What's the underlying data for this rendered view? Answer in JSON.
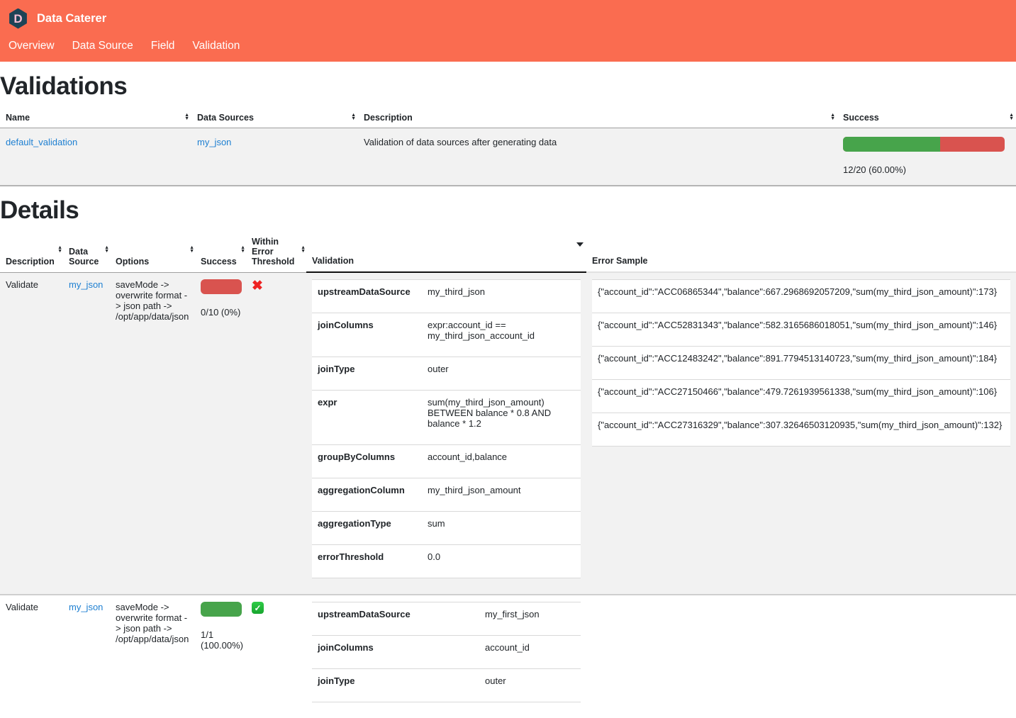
{
  "app": {
    "title": "Data Caterer",
    "logo_letter": "D"
  },
  "nav": {
    "items": [
      {
        "label": "Overview"
      },
      {
        "label": "Data Source"
      },
      {
        "label": "Field"
      },
      {
        "label": "Validation"
      }
    ]
  },
  "colors": {
    "topbar_orange": "#fa6c50",
    "logo_navy": "#1d4356",
    "logo_letter_pink": "#f7bdd3",
    "link_blue": "#1d7fd1",
    "success_green": "#47a44b",
    "fail_red": "#d9534f",
    "x_red": "#ee2222",
    "striped_row_gray": "#f2f2f2"
  },
  "validations": {
    "heading": "Validations",
    "columns": [
      "Name",
      "Data Sources",
      "Description",
      "Success"
    ],
    "rows": [
      {
        "name": "default_validation",
        "data_sources": "my_json",
        "description": "Validation of data sources after generating data",
        "success": {
          "percent": 60,
          "label": "12/20 (60.00%)"
        }
      }
    ]
  },
  "details": {
    "heading": "Details",
    "columns": [
      "Description",
      "Data Source",
      "Options",
      "Success",
      "Within Error Threshold",
      "Validation",
      "Error Sample"
    ],
    "rows": [
      {
        "description": "Validate",
        "data_source": "my_json",
        "options": "saveMode -> overwrite format -> json path -> /opt/app/data/json",
        "success": {
          "percent": 0,
          "label": "0/10 (0%)"
        },
        "within_error_threshold": "fail",
        "validation": [
          {
            "key": "upstreamDataSource",
            "value": "my_third_json"
          },
          {
            "key": "joinColumns",
            "value": "expr:account_id == my_third_json_account_id"
          },
          {
            "key": "joinType",
            "value": "outer"
          },
          {
            "key": "expr",
            "value": "sum(my_third_json_amount) BETWEEN balance * 0.8 AND balance * 1.2"
          },
          {
            "key": "groupByColumns",
            "value": "account_id,balance"
          },
          {
            "key": "aggregationColumn",
            "value": "my_third_json_amount"
          },
          {
            "key": "aggregationType",
            "value": "sum"
          },
          {
            "key": "errorThreshold",
            "value": "0.0"
          }
        ],
        "error_samples": [
          "{\"account_id\":\"ACC06865344\",\"balance\":667.2968692057209,\"sum(my_third_json_amount)\":173}",
          "{\"account_id\":\"ACC52831343\",\"balance\":582.3165686018051,\"sum(my_third_json_amount)\":146}",
          "{\"account_id\":\"ACC12483242\",\"balance\":891.7794513140723,\"sum(my_third_json_amount)\":184}",
          "{\"account_id\":\"ACC27150466\",\"balance\":479.7261939561338,\"sum(my_third_json_amount)\":106}",
          "{\"account_id\":\"ACC27316329\",\"balance\":307.32646503120935,\"sum(my_third_json_amount)\":132}"
        ]
      },
      {
        "description": "Validate",
        "data_source": "my_json",
        "options": "saveMode -> overwrite format -> json path -> /opt/app/data/json",
        "success": {
          "percent": 100,
          "label": "1/1 (100.00%)"
        },
        "within_error_threshold": "pass",
        "validation": [
          {
            "key": "upstreamDataSource",
            "value": "my_first_json"
          },
          {
            "key": "joinColumns",
            "value": "account_id"
          },
          {
            "key": "joinType",
            "value": "outer"
          }
        ],
        "error_samples": []
      }
    ]
  }
}
